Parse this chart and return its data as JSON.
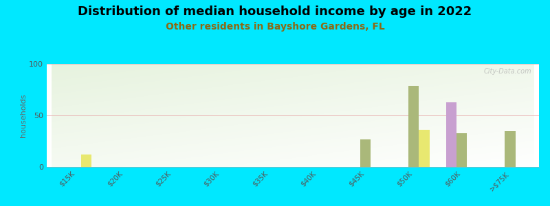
{
  "title": "Distribution of median household income by age in 2022",
  "subtitle": "Other residents in Bayshore Gardens, FL",
  "ylabel": "households",
  "categories": [
    "$15K",
    "$20K",
    "$25K",
    "$30K",
    "$35K",
    "$40K",
    "$45K",
    "$50K",
    "$60K",
    ">$75K"
  ],
  "under25": [
    0,
    0,
    0,
    0,
    0,
    0,
    0,
    0,
    63,
    0
  ],
  "age25_44": [
    0,
    0,
    0,
    0,
    0,
    0,
    27,
    79,
    33,
    35
  ],
  "over64": [
    12,
    0,
    0,
    0,
    0,
    0,
    0,
    36,
    0,
    0
  ],
  "color_under25": "#c8a0d0",
  "color_25_44": "#aab87a",
  "color_over64": "#e8e870",
  "ylim": [
    0,
    100
  ],
  "yticks": [
    0,
    50,
    100
  ],
  "outer_bg": "#00e8ff",
  "title_fontsize": 13,
  "subtitle_fontsize": 10,
  "subtitle_color": "#8B6914",
  "watermark": "City-Data.com"
}
